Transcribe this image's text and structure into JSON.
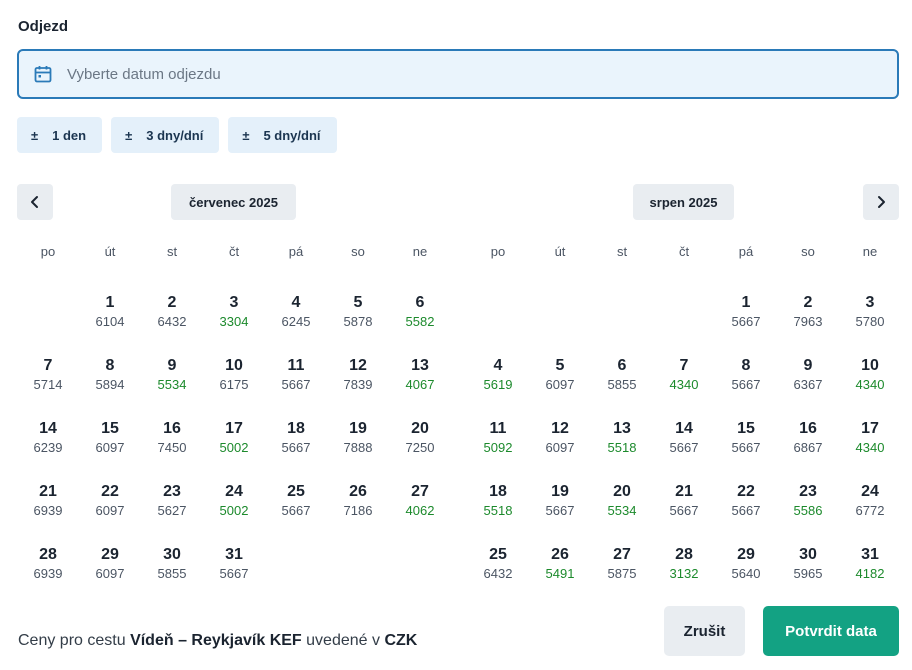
{
  "departure": {
    "label": "Odjezd",
    "placeholder": "Vyberte datum odjezdu",
    "icon": "calendar-icon"
  },
  "flex_options": [
    {
      "symbol": "±",
      "label": "1 den"
    },
    {
      "symbol": "±",
      "label": "3 dny/dní"
    },
    {
      "symbol": "±",
      "label": "5 dny/dní"
    }
  ],
  "weekdays": [
    "po",
    "út",
    "st",
    "čt",
    "pá",
    "so",
    "ne"
  ],
  "months": [
    {
      "title": "červenec 2025",
      "start_offset": 1,
      "days": [
        {
          "day": "1",
          "price": "6104",
          "cheap": false
        },
        {
          "day": "2",
          "price": "6432",
          "cheap": false
        },
        {
          "day": "3",
          "price": "3304",
          "cheap": true
        },
        {
          "day": "4",
          "price": "6245",
          "cheap": false
        },
        {
          "day": "5",
          "price": "5878",
          "cheap": false
        },
        {
          "day": "6",
          "price": "5582",
          "cheap": true
        },
        {
          "day": "7",
          "price": "5714",
          "cheap": false
        },
        {
          "day": "8",
          "price": "5894",
          "cheap": false
        },
        {
          "day": "9",
          "price": "5534",
          "cheap": true
        },
        {
          "day": "10",
          "price": "6175",
          "cheap": false
        },
        {
          "day": "11",
          "price": "5667",
          "cheap": false
        },
        {
          "day": "12",
          "price": "7839",
          "cheap": false
        },
        {
          "day": "13",
          "price": "4067",
          "cheap": true
        },
        {
          "day": "14",
          "price": "6239",
          "cheap": false
        },
        {
          "day": "15",
          "price": "6097",
          "cheap": false
        },
        {
          "day": "16",
          "price": "7450",
          "cheap": false
        },
        {
          "day": "17",
          "price": "5002",
          "cheap": true
        },
        {
          "day": "18",
          "price": "5667",
          "cheap": false
        },
        {
          "day": "19",
          "price": "7888",
          "cheap": false
        },
        {
          "day": "20",
          "price": "7250",
          "cheap": false
        },
        {
          "day": "21",
          "price": "6939",
          "cheap": false
        },
        {
          "day": "22",
          "price": "6097",
          "cheap": false
        },
        {
          "day": "23",
          "price": "5627",
          "cheap": false
        },
        {
          "day": "24",
          "price": "5002",
          "cheap": true
        },
        {
          "day": "25",
          "price": "5667",
          "cheap": false
        },
        {
          "day": "26",
          "price": "7186",
          "cheap": false
        },
        {
          "day": "27",
          "price": "4062",
          "cheap": true
        },
        {
          "day": "28",
          "price": "6939",
          "cheap": false
        },
        {
          "day": "29",
          "price": "6097",
          "cheap": false
        },
        {
          "day": "30",
          "price": "5855",
          "cheap": false
        },
        {
          "day": "31",
          "price": "5667",
          "cheap": false
        }
      ]
    },
    {
      "title": "srpen 2025",
      "start_offset": 4,
      "days": [
        {
          "day": "1",
          "price": "5667",
          "cheap": false
        },
        {
          "day": "2",
          "price": "7963",
          "cheap": false
        },
        {
          "day": "3",
          "price": "5780",
          "cheap": false
        },
        {
          "day": "4",
          "price": "5619",
          "cheap": true
        },
        {
          "day": "5",
          "price": "6097",
          "cheap": false
        },
        {
          "day": "6",
          "price": "5855",
          "cheap": false
        },
        {
          "day": "7",
          "price": "4340",
          "cheap": true
        },
        {
          "day": "8",
          "price": "5667",
          "cheap": false
        },
        {
          "day": "9",
          "price": "6367",
          "cheap": false
        },
        {
          "day": "10",
          "price": "4340",
          "cheap": true
        },
        {
          "day": "11",
          "price": "5092",
          "cheap": true
        },
        {
          "day": "12",
          "price": "6097",
          "cheap": false
        },
        {
          "day": "13",
          "price": "5518",
          "cheap": true
        },
        {
          "day": "14",
          "price": "5667",
          "cheap": false
        },
        {
          "day": "15",
          "price": "5667",
          "cheap": false
        },
        {
          "day": "16",
          "price": "6867",
          "cheap": false
        },
        {
          "day": "17",
          "price": "4340",
          "cheap": true
        },
        {
          "day": "18",
          "price": "5518",
          "cheap": true
        },
        {
          "day": "19",
          "price": "5667",
          "cheap": false
        },
        {
          "day": "20",
          "price": "5534",
          "cheap": true
        },
        {
          "day": "21",
          "price": "5667",
          "cheap": false
        },
        {
          "day": "22",
          "price": "5667",
          "cheap": false
        },
        {
          "day": "23",
          "price": "5586",
          "cheap": true
        },
        {
          "day": "24",
          "price": "6772",
          "cheap": false
        },
        {
          "day": "25",
          "price": "6432",
          "cheap": false
        },
        {
          "day": "26",
          "price": "5491",
          "cheap": true
        },
        {
          "day": "27",
          "price": "5875",
          "cheap": false
        },
        {
          "day": "28",
          "price": "3132",
          "cheap": true
        },
        {
          "day": "29",
          "price": "5640",
          "cheap": false
        },
        {
          "day": "30",
          "price": "5965",
          "cheap": false
        },
        {
          "day": "31",
          "price": "4182",
          "cheap": true
        }
      ]
    }
  ],
  "nav": {
    "prev_icon": "chevron-left-icon",
    "next_icon": "chevron-right-icon"
  },
  "footer": {
    "prefix": "Ceny pro cestu",
    "route": "Vídeň – Reykjavík KEF",
    "middle": "uvedené v",
    "currency": "CZK"
  },
  "buttons": {
    "cancel": "Zrušit",
    "confirm": "Potvrdit data"
  },
  "colors": {
    "accent": "#13a283",
    "cheap_price": "#1c8a2c",
    "input_border": "#2a7ab8"
  }
}
